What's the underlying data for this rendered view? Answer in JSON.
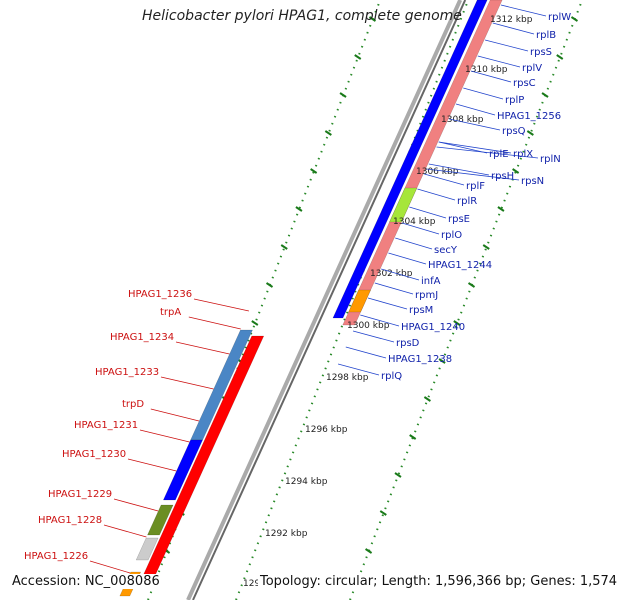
{
  "title": "Helicobacter pylori HPAG1, complete genome",
  "footer": {
    "accession": "Accession: NC_008086",
    "summary": "Topology: circular; Length: 1,596,366 bp; Genes: 1,574"
  },
  "colors": {
    "forward_gene": "#ff0000",
    "reverse_gene": "#0000ff",
    "operon_blue": "#4a86c5",
    "rrna_salmon": "#f08080",
    "highlight_green": "#a6e63a",
    "highlight_orange": "#ff9900",
    "highlight_olive": "#6b8e23",
    "backbone": "#999999",
    "tick_green": "#118811"
  },
  "kbp_ticks": [
    "1312 kbp",
    "1310 kbp",
    "1308 kbp",
    "1306 kbp",
    "1304 kbp",
    "1302 kbp",
    "1300 kbp",
    "1298 kbp",
    "1296 kbp",
    "1294 kbp",
    "1292 kbp",
    "129"
  ],
  "right_labels": [
    "rplW",
    "rplB",
    "rpsS",
    "rplV",
    "rpsC",
    "rplP",
    "HPAG1_1256",
    "rpsQ",
    "rplN",
    "rplE",
    "rplX",
    "rpsN",
    "rpsH",
    "rplF",
    "rplR",
    "rpsE",
    "rplO",
    "secY",
    "HPAG1_1244",
    "infA",
    "rpmJ",
    "rpsM",
    "HPAG1_1240",
    "rpsD",
    "HPAG1_1238",
    "rplQ"
  ],
  "left_labels": [
    "HPAG1_1236",
    "trpA",
    "HPAG1_1234",
    "HPAG1_1233",
    "trpD",
    "HPAG1_1231",
    "HPAG1_1230",
    "HPAG1_1229",
    "HPAG1_1228",
    "HPAG1_1226"
  ]
}
